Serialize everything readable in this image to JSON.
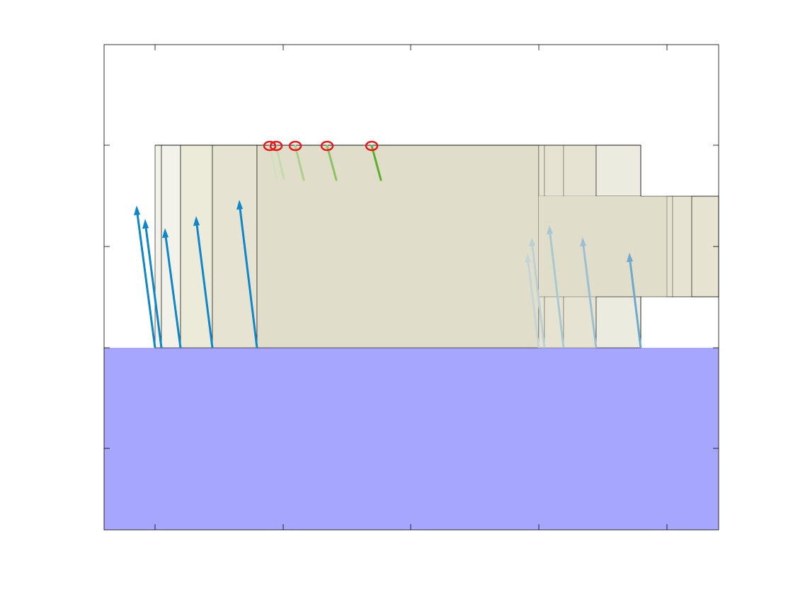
{
  "figure": {
    "background": "#ffffff",
    "axes": {
      "box": true,
      "tick_labels_visible": false
    },
    "colors": {
      "ground": "#a6a6fe",
      "block_light": "#efede2",
      "block_mid": "#e6e3d4",
      "block_dark": "#e0ddcb",
      "outline": "#000000",
      "force_arrow": "#0f86c8",
      "force_arrow_faded": "#aac8d0",
      "contact_marker": "#e41a1c",
      "contact_force": "#5ab12a"
    },
    "legend": null,
    "title": null
  }
}
